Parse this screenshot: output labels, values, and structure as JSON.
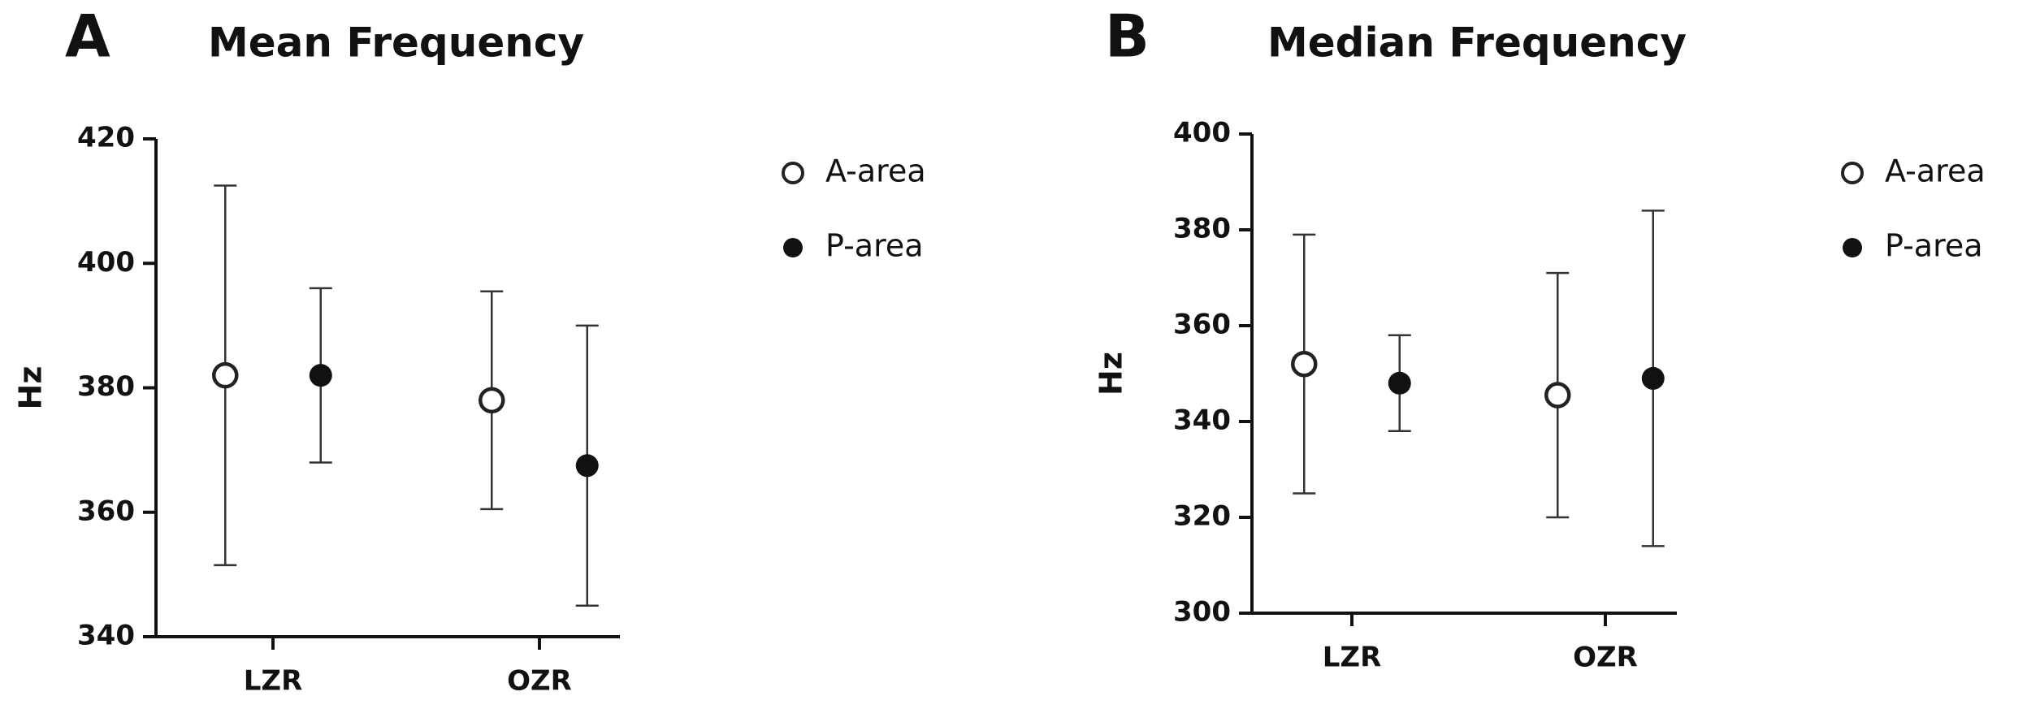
{
  "chart_data": [
    {
      "type": "errorbar",
      "panel_label": "A",
      "title": "Mean Frequency",
      "y_label": "Hz",
      "categories": [
        "LZR",
        "OZR"
      ],
      "series": [
        {
          "name": "A-area",
          "color": "#222222",
          "marker": "open",
          "values": [
            382,
            378
          ],
          "errors": [
            30.5,
            17.5
          ]
        },
        {
          "name": "P-area",
          "color": "#111111",
          "marker": "filled",
          "values": [
            382,
            367.5
          ],
          "errors": [
            14,
            22.5
          ]
        }
      ],
      "ylim": [
        340,
        420
      ],
      "yticks": [
        340,
        360,
        380,
        400,
        420
      ]
    },
    {
      "type": "errorbar",
      "panel_label": "B",
      "title": "Median Frequency",
      "y_label": "Hz",
      "categories": [
        "LZR",
        "OZR"
      ],
      "series": [
        {
          "name": "A-area",
          "color": "#222222",
          "marker": "open",
          "values": [
            352,
            345.5
          ],
          "errors": [
            27,
            25.5
          ]
        },
        {
          "name": "P-area",
          "color": "#111111",
          "marker": "filled",
          "values": [
            348,
            349
          ],
          "errors": [
            10,
            35
          ]
        }
      ],
      "ylim": [
        300,
        400
      ],
      "yticks": [
        300,
        320,
        340,
        360,
        380,
        400
      ]
    }
  ]
}
